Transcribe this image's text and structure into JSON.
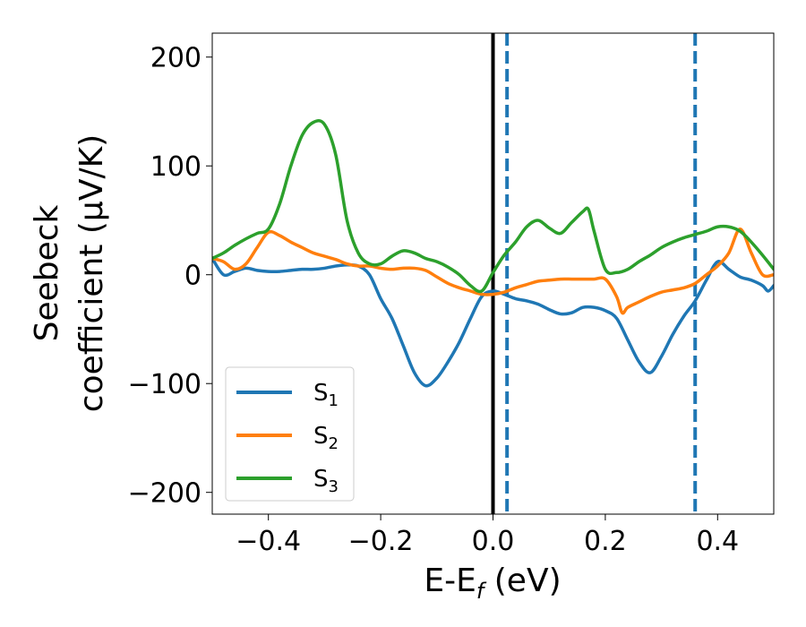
{
  "chart_data": {
    "type": "line",
    "xlabel": {
      "main": "E-E",
      "sub": "f",
      "suffix": " (eV)"
    },
    "ylabel": {
      "line1": "Seebeck",
      "line2": "coefficient  (μV/K)"
    },
    "xlim": [
      -0.5,
      0.5
    ],
    "ylim": [
      -220,
      222
    ],
    "xticks": [
      -0.4,
      -0.2,
      0.0,
      0.2,
      0.4
    ],
    "xtick_labels": [
      "−0.4",
      "−0.2",
      "0.0",
      "0.2",
      "0.4"
    ],
    "yticks": [
      -200,
      -100,
      0,
      100,
      200
    ],
    "ytick_labels": [
      "−200",
      "−100",
      "0",
      "100",
      "200"
    ],
    "grid": false,
    "legend_position": "lower-left",
    "vlines": [
      {
        "x": 0.0,
        "color": "#000000",
        "style": "solid"
      },
      {
        "x": 0.025,
        "color": "#1f77b4",
        "style": "dashed"
      },
      {
        "x": 0.36,
        "color": "#1f77b4",
        "style": "dashed"
      }
    ],
    "series": [
      {
        "name": "S",
        "sub": "1",
        "color": "#1f77b4",
        "x": [
          -0.5,
          -0.48,
          -0.46,
          -0.44,
          -0.42,
          -0.4,
          -0.38,
          -0.36,
          -0.34,
          -0.32,
          -0.3,
          -0.28,
          -0.26,
          -0.24,
          -0.22,
          -0.2,
          -0.18,
          -0.16,
          -0.14,
          -0.12,
          -0.1,
          -0.08,
          -0.06,
          -0.04,
          -0.02,
          0.0,
          0.02,
          0.04,
          0.06,
          0.08,
          0.1,
          0.12,
          0.14,
          0.16,
          0.18,
          0.2,
          0.22,
          0.24,
          0.26,
          0.28,
          0.3,
          0.32,
          0.34,
          0.36,
          0.38,
          0.4,
          0.42,
          0.44,
          0.46,
          0.48,
          0.49,
          0.5
        ],
        "y": [
          15,
          0,
          3,
          6,
          4,
          3,
          3,
          4,
          5,
          5,
          6,
          8,
          9,
          8,
          0,
          -22,
          -40,
          -65,
          -90,
          -102,
          -95,
          -80,
          -62,
          -40,
          -20,
          -15,
          -18,
          -22,
          -24,
          -27,
          -32,
          -36,
          -35,
          -30,
          -30,
          -33,
          -40,
          -60,
          -80,
          -90,
          -75,
          -55,
          -38,
          -24,
          -5,
          12,
          5,
          -2,
          -5,
          -10,
          -15,
          -10
        ]
      },
      {
        "name": "S",
        "sub": "2",
        "color": "#ff7f0e",
        "x": [
          -0.5,
          -0.48,
          -0.46,
          -0.44,
          -0.42,
          -0.4,
          -0.38,
          -0.36,
          -0.34,
          -0.32,
          -0.3,
          -0.28,
          -0.26,
          -0.24,
          -0.22,
          -0.2,
          -0.18,
          -0.16,
          -0.14,
          -0.12,
          -0.1,
          -0.08,
          -0.06,
          -0.04,
          -0.02,
          0.0,
          0.02,
          0.04,
          0.06,
          0.08,
          0.1,
          0.12,
          0.14,
          0.16,
          0.18,
          0.2,
          0.22,
          0.23,
          0.24,
          0.26,
          0.28,
          0.3,
          0.32,
          0.34,
          0.36,
          0.38,
          0.4,
          0.42,
          0.44,
          0.46,
          0.48,
          0.5
        ],
        "y": [
          15,
          12,
          5,
          10,
          25,
          39,
          36,
          30,
          25,
          20,
          17,
          14,
          10,
          8,
          8,
          6,
          5,
          6,
          6,
          4,
          -2,
          -8,
          -12,
          -15,
          -18,
          -18,
          -16,
          -12,
          -9,
          -6,
          -5,
          -4,
          -4,
          -4,
          -4,
          -4,
          -20,
          -35,
          -30,
          -25,
          -20,
          -16,
          -14,
          -12,
          -8,
          0,
          8,
          20,
          42,
          20,
          0,
          0
        ]
      },
      {
        "name": "S",
        "sub": "3",
        "color": "#2ca02c",
        "x": [
          -0.5,
          -0.48,
          -0.46,
          -0.44,
          -0.42,
          -0.4,
          -0.38,
          -0.36,
          -0.34,
          -0.32,
          -0.3,
          -0.28,
          -0.26,
          -0.24,
          -0.22,
          -0.2,
          -0.18,
          -0.16,
          -0.14,
          -0.12,
          -0.1,
          -0.08,
          -0.06,
          -0.04,
          -0.02,
          0.0,
          0.02,
          0.04,
          0.06,
          0.08,
          0.1,
          0.12,
          0.14,
          0.16,
          0.17,
          0.18,
          0.2,
          0.22,
          0.24,
          0.26,
          0.28,
          0.3,
          0.32,
          0.34,
          0.36,
          0.38,
          0.4,
          0.42,
          0.44,
          0.46,
          0.48,
          0.5
        ],
        "y": [
          15,
          20,
          27,
          33,
          38,
          42,
          65,
          100,
          128,
          140,
          138,
          110,
          50,
          20,
          10,
          10,
          17,
          22,
          20,
          15,
          12,
          7,
          0,
          -10,
          -15,
          2,
          18,
          30,
          44,
          50,
          43,
          38,
          48,
          58,
          60,
          40,
          5,
          2,
          5,
          12,
          18,
          25,
          30,
          34,
          37,
          40,
          44,
          44,
          40,
          30,
          18,
          5
        ]
      }
    ]
  }
}
